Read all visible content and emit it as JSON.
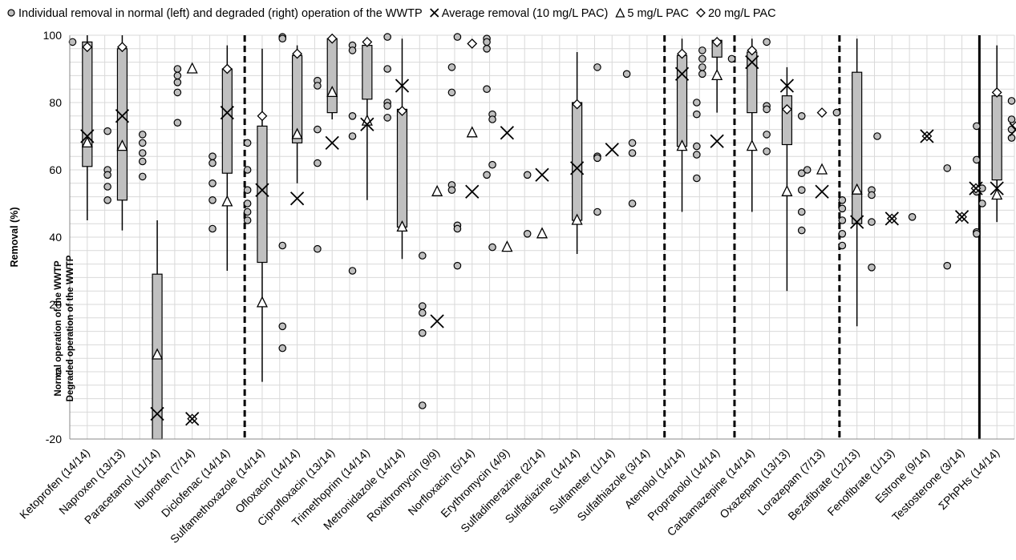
{
  "legend": [
    {
      "symbol": "circle",
      "label": "Individual removal in normal (left) and degraded (right) operation of the WWTP"
    },
    {
      "symbol": "cross",
      "label": "Average removal (10 mg/L PAC)"
    },
    {
      "symbol": "triangle",
      "label": "5 mg/L PAC"
    },
    {
      "symbol": "diamond",
      "label": "20 mg/L PAC"
    }
  ],
  "annotation_normal": "Normal operation of the WWTP",
  "annotation_degraded": "Degraded operation of the WWTP",
  "chart_data": {
    "type": "box",
    "ylabel": "Removal (%)",
    "xlabel": "",
    "ylim": [
      -20,
      100
    ],
    "yticks": [
      -20,
      0,
      20,
      40,
      60,
      80,
      100
    ],
    "grid": true,
    "legend_position": "top",
    "colors": {
      "box_fill": "#c0c0c0",
      "marker_fill": "#bfbfbf",
      "grid": "#d9d9d9",
      "line": "#000000"
    },
    "group_separators": [
      {
        "after": "Diclofenac (14/14)",
        "style": "dashed"
      },
      {
        "after": "Sulfathiazole (3/14)",
        "style": "dashed"
      },
      {
        "after": "Propranolol (14/14)",
        "style": "dashed"
      },
      {
        "after": "Lorazepam (7/13)",
        "style": "dashed"
      },
      {
        "after": "Testosterone (3/14)",
        "style": "solid"
      }
    ],
    "compounds": [
      {
        "name": "Ketoprofen (14/14)",
        "box": [
          61,
          98
        ],
        "whisker": [
          45,
          100
        ],
        "avg": 70,
        "tri": 68,
        "dia": 96.5,
        "pts": [
          {
            "s": "L",
            "v": 98
          }
        ]
      },
      {
        "name": "Naproxen (13/13)",
        "box": [
          51,
          96
        ],
        "whisker": [
          42,
          100
        ],
        "avg": 76,
        "tri": 67,
        "dia": 96.5,
        "pts": [
          {
            "s": "L",
            "v": 71.5
          },
          {
            "s": "L",
            "v": 60
          },
          {
            "s": "L",
            "v": 58.5
          },
          {
            "s": "L",
            "v": 55
          },
          {
            "s": "L",
            "v": 51
          }
        ]
      },
      {
        "name": "Paracetamol (11/14)",
        "box": [
          -20,
          29
        ],
        "whisker": [
          -20,
          45
        ],
        "avg": -12.5,
        "tri": 5,
        "dia": null,
        "pts": [
          {
            "s": "L",
            "v": 70.5
          },
          {
            "s": "L",
            "v": 68
          },
          {
            "s": "L",
            "v": 65
          },
          {
            "s": "L",
            "v": 62.5
          },
          {
            "s": "L",
            "v": 58
          }
        ]
      },
      {
        "name": "Ibuprofen (7/14)",
        "box": null,
        "whisker": null,
        "avg": -14,
        "tri": 90,
        "dia": -14,
        "pts": [
          {
            "s": "L",
            "v": 90
          },
          {
            "s": "L",
            "v": 88
          },
          {
            "s": "L",
            "v": 86
          },
          {
            "s": "L",
            "v": 83
          },
          {
            "s": "L",
            "v": 74
          }
        ]
      },
      {
        "name": "Diclofenac (14/14)",
        "box": [
          59,
          90
        ],
        "whisker": [
          30,
          97
        ],
        "avg": 77,
        "tri": 50.5,
        "dia": 90,
        "pts": [
          {
            "s": "L",
            "v": 64
          },
          {
            "s": "L",
            "v": 62
          },
          {
            "s": "L",
            "v": 56
          },
          {
            "s": "L",
            "v": 51
          },
          {
            "s": "L",
            "v": 42.5
          }
        ]
      },
      {
        "name": "Sulfamethoxazole (14/14)",
        "box": [
          32.5,
          73
        ],
        "whisker": [
          -3,
          96
        ],
        "avg": 54,
        "tri": 20.5,
        "dia": 76,
        "pts": [
          {
            "s": "L",
            "v": 68
          },
          {
            "s": "L",
            "v": 60
          },
          {
            "s": "L",
            "v": 54
          },
          {
            "s": "L",
            "v": 50
          },
          {
            "s": "L",
            "v": 47.5
          },
          {
            "s": "L",
            "v": 45
          }
        ]
      },
      {
        "name": "Ofloxacin (14/14)",
        "box": [
          68,
          94
        ],
        "whisker": [
          56,
          97
        ],
        "avg": 51.5,
        "tri": 70.5,
        "dia": 94.5,
        "pts": [
          {
            "s": "L",
            "v": 99.5
          },
          {
            "s": "L",
            "v": 99
          },
          {
            "s": "L",
            "v": 37.5
          },
          {
            "s": "L",
            "v": 13.5
          },
          {
            "s": "L",
            "v": 7
          }
        ]
      },
      {
        "name": "Ciprofloxacin (13/14)",
        "box": [
          77,
          99
        ],
        "whisker": [
          75,
          100
        ],
        "avg": 68,
        "tri": 83,
        "dia": 99,
        "pts": [
          {
            "s": "L",
            "v": 86.5
          },
          {
            "s": "L",
            "v": 85
          },
          {
            "s": "L",
            "v": 72
          },
          {
            "s": "L",
            "v": 62
          },
          {
            "s": "L",
            "v": 36.5
          }
        ]
      },
      {
        "name": "Trimethoprim (14/14)",
        "box": [
          81,
          97
        ],
        "whisker": [
          51,
          99
        ],
        "avg": 73.5,
        "tri": 74.5,
        "dia": 98,
        "pts": [
          {
            "s": "L",
            "v": 97
          },
          {
            "s": "L",
            "v": 95.5
          },
          {
            "s": "L",
            "v": 76
          },
          {
            "s": "L",
            "v": 70
          },
          {
            "s": "L",
            "v": 30
          }
        ]
      },
      {
        "name": "Metronidazole (14/14)",
        "box": [
          43,
          78
        ],
        "whisker": [
          33.5,
          99
        ],
        "avg": 85,
        "tri": 43,
        "dia": 77.5,
        "pts": [
          {
            "s": "L",
            "v": 99.5
          },
          {
            "s": "L",
            "v": 90
          },
          {
            "s": "L",
            "v": 80
          },
          {
            "s": "L",
            "v": 79
          },
          {
            "s": "L",
            "v": 75.5
          }
        ]
      },
      {
        "name": "Roxithromycin (9/9)",
        "box": null,
        "whisker": null,
        "avg": 15,
        "tri": 53.5,
        "dia": null,
        "pts": [
          {
            "s": "L",
            "v": 34.5
          },
          {
            "s": "L",
            "v": 19.5
          },
          {
            "s": "L",
            "v": 17.5
          },
          {
            "s": "L",
            "v": 11.5
          },
          {
            "s": "L",
            "v": -10
          },
          {
            "s": "R",
            "v": 90.5
          },
          {
            "s": "R",
            "v": 83
          },
          {
            "s": "R",
            "v": 55.5
          },
          {
            "s": "R",
            "v": 54
          }
        ]
      },
      {
        "name": "Norfloxacin (5/14)",
        "box": null,
        "whisker": null,
        "avg": 53.5,
        "tri": 71,
        "dia": 97.5,
        "pts": [
          {
            "s": "L",
            "v": 99.5
          },
          {
            "s": "L",
            "v": 43.5
          },
          {
            "s": "L",
            "v": 42.5
          },
          {
            "s": "L",
            "v": 31.5
          },
          {
            "s": "R",
            "v": 99
          },
          {
            "s": "R",
            "v": 98
          },
          {
            "s": "R",
            "v": 96
          },
          {
            "s": "R",
            "v": 84
          },
          {
            "s": "R",
            "v": 58.5
          }
        ]
      },
      {
        "name": "Erythromycin (4/9)",
        "box": null,
        "whisker": null,
        "avg": 71,
        "tri": 37,
        "dia": null,
        "pts": [
          {
            "s": "L",
            "v": 76.5
          },
          {
            "s": "L",
            "v": 75
          },
          {
            "s": "L",
            "v": 61.5
          },
          {
            "s": "L",
            "v": 37
          }
        ]
      },
      {
        "name": "Sulfadimerazine (2/14)",
        "box": null,
        "whisker": null,
        "avg": 58.5,
        "tri": 41,
        "dia": null,
        "pts": [
          {
            "s": "L",
            "v": 58.5
          },
          {
            "s": "L",
            "v": 41
          }
        ]
      },
      {
        "name": "Sulfadiazine (14/14)",
        "box": [
          45,
          80
        ],
        "whisker": [
          35,
          95
        ],
        "avg": 60.5,
        "tri": 45,
        "dia": 79.5,
        "pts": []
      },
      {
        "name": "Sulfameter (1/14)",
        "box": null,
        "whisker": null,
        "avg": 66,
        "tri": null,
        "dia": null,
        "pts": [
          {
            "s": "L",
            "v": 90.5
          },
          {
            "s": "L",
            "v": 64
          },
          {
            "s": "L",
            "v": 63.5
          },
          {
            "s": "L",
            "v": 47.5
          },
          {
            "s": "R",
            "v": 88.5
          }
        ]
      },
      {
        "name": "Sulfathiazole (3/14)",
        "box": null,
        "whisker": null,
        "avg": null,
        "tri": null,
        "dia": null,
        "pts": [
          {
            "s": "L",
            "v": 68
          },
          {
            "s": "L",
            "v": 65
          },
          {
            "s": "L",
            "v": 50
          }
        ]
      },
      {
        "name": "Atenolol (14/14)",
        "box": [
          67,
          94
        ],
        "whisker": [
          47.5,
          99
        ],
        "avg": 88.5,
        "tri": 67,
        "dia": 94.5,
        "pts": [
          {
            "s": "R",
            "v": 80
          },
          {
            "s": "R",
            "v": 76.5
          },
          {
            "s": "R",
            "v": 67
          },
          {
            "s": "R",
            "v": 64.5
          },
          {
            "s": "R",
            "v": 57.5
          }
        ]
      },
      {
        "name": "Propranolol (14/14)",
        "box": [
          93.5,
          98.5
        ],
        "whisker": [
          77,
          99
        ],
        "avg": 68.5,
        "tri": 88,
        "dia": 98,
        "pts": [
          {
            "s": "L",
            "v": 95.5
          },
          {
            "s": "L",
            "v": 93
          },
          {
            "s": "L",
            "v": 90.5
          },
          {
            "s": "L",
            "v": 88.5
          },
          {
            "s": "R",
            "v": 93
          }
        ]
      },
      {
        "name": "Carbamazepine (14/14)",
        "box": [
          77,
          95
        ],
        "whisker": [
          47.5,
          99
        ],
        "avg": 92,
        "tri": 67,
        "dia": 95.5,
        "pts": [
          {
            "s": "R",
            "v": 98
          },
          {
            "s": "R",
            "v": 79
          },
          {
            "s": "R",
            "v": 78
          },
          {
            "s": "R",
            "v": 70.5
          },
          {
            "s": "R",
            "v": 65.5
          }
        ]
      },
      {
        "name": "Oxazepam (13/13)",
        "box": [
          67.5,
          82
        ],
        "whisker": [
          24,
          90.5
        ],
        "avg": 85,
        "tri": 53.5,
        "dia": 78,
        "pts": [
          {
            "s": "R",
            "v": 76
          },
          {
            "s": "R",
            "v": 59
          },
          {
            "s": "R",
            "v": 54
          },
          {
            "s": "R",
            "v": 47.5
          },
          {
            "s": "R",
            "v": 42
          }
        ]
      },
      {
        "name": "Lorazepam (7/13)",
        "box": null,
        "whisker": null,
        "avg": 53.5,
        "tri": 60,
        "dia": 77,
        "pts": [
          {
            "s": "L",
            "v": 60
          },
          {
            "s": "R",
            "v": 77
          }
        ]
      },
      {
        "name": "Bezafibrate (12/13)",
        "box": [
          44,
          89
        ],
        "whisker": [
          13.5,
          99
        ],
        "avg": 44.5,
        "tri": 54,
        "dia": null,
        "pts": [
          {
            "s": "L",
            "v": 51
          },
          {
            "s": "L",
            "v": 48.5
          },
          {
            "s": "L",
            "v": 45
          },
          {
            "s": "L",
            "v": 41
          },
          {
            "s": "L",
            "v": 37.5
          },
          {
            "s": "R",
            "v": 54
          },
          {
            "s": "R",
            "v": 52.5
          },
          {
            "s": "R",
            "v": 44.5
          },
          {
            "s": "R",
            "v": 31
          }
        ]
      },
      {
        "name": "Fenofibrate (1/13)",
        "box": null,
        "whisker": null,
        "avg": 45.5,
        "tri": null,
        "dia": 45.5,
        "pts": [
          {
            "s": "L",
            "v": 70
          }
        ]
      },
      {
        "name": "Estrone (9/14)",
        "box": null,
        "whisker": null,
        "avg": 70,
        "tri": null,
        "dia": 70,
        "pts": [
          {
            "s": "L",
            "v": 46
          }
        ]
      },
      {
        "name": "Testosterone (3/14)",
        "box": null,
        "whisker": null,
        "avg": 46,
        "tri": null,
        "dia": 46,
        "pts": [
          {
            "s": "L",
            "v": 60.5
          },
          {
            "s": "L",
            "v": 31.5
          },
          {
            "s": "R",
            "v": 73
          },
          {
            "s": "R",
            "v": 63
          },
          {
            "s": "R",
            "v": 53.5
          },
          {
            "s": "R",
            "v": 41.5
          },
          {
            "s": "R",
            "v": 41
          }
        ]
      },
      {
        "name": "ΣPhPHs (14/14)",
        "box": [
          57,
          82
        ],
        "whisker": [
          44.5,
          97
        ],
        "avg": 54.5,
        "tri": 52.5,
        "dia": 83,
        "pts": [
          {
            "s": "L",
            "v": 50
          },
          {
            "s": "L",
            "v": 54.5
          },
          {
            "s": "R",
            "v": 80.5
          },
          {
            "s": "R",
            "v": 75
          },
          {
            "s": "R",
            "v": 72
          },
          {
            "s": "R",
            "v": 69.5
          }
        ]
      }
    ],
    "extra_markers": [
      {
        "between": [
          "Testosterone (3/14)",
          "ΣPhPHs (14/14)"
        ],
        "avg": 54.5,
        "tri": null,
        "dia": 54.5
      },
      {
        "between": [
          "ΣPhPHs (14/14)",
          "end"
        ],
        "avg": 72,
        "tri": null,
        "dia": 73
      }
    ]
  }
}
